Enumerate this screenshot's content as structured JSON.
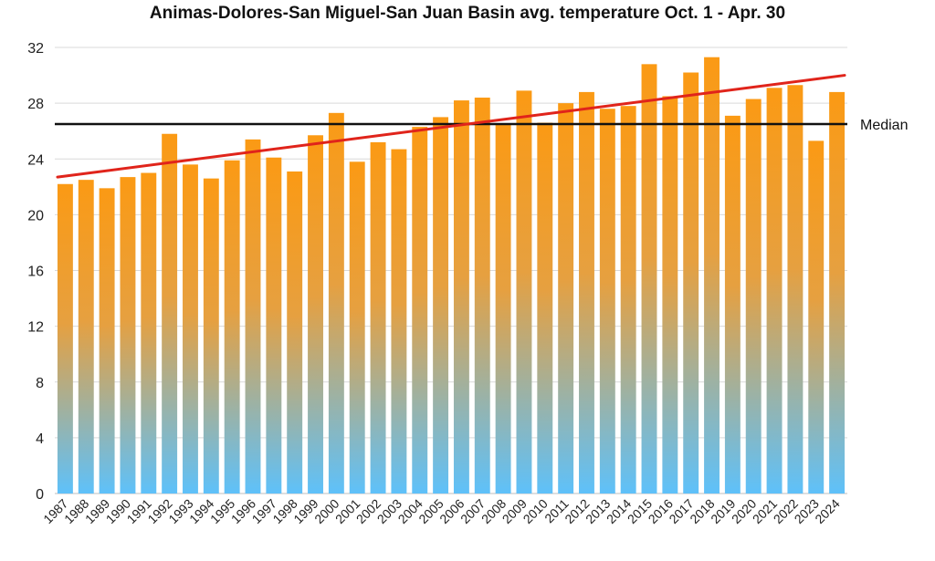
{
  "chart_data": {
    "type": "bar",
    "title": "Animas-Dolores-San Miguel-San Juan Basin avg. temperature Oct. 1 - Apr. 30",
    "xlabel": "",
    "ylabel": "",
    "ylim": [
      0,
      32
    ],
    "yticks": [
      "0",
      "4",
      "8",
      "12",
      "16",
      "20",
      "24",
      "28",
      "32"
    ],
    "grid": true,
    "legend": "none",
    "categories": [
      "1987",
      "1988",
      "1989",
      "1990",
      "1991",
      "1992",
      "1993",
      "1994",
      "1995",
      "1996",
      "1997",
      "1998",
      "1999",
      "2000",
      "2001",
      "2002",
      "2003",
      "2004",
      "2005",
      "2006",
      "2007",
      "2008",
      "2009",
      "2010",
      "2011",
      "2012",
      "2013",
      "2014",
      "2015",
      "2016",
      "2017",
      "2018",
      "2019",
      "2020",
      "2021",
      "2022",
      "2023",
      "2024"
    ],
    "values": [
      22.2,
      22.5,
      21.9,
      22.7,
      23.0,
      25.8,
      23.6,
      22.6,
      23.9,
      25.4,
      24.1,
      23.1,
      25.7,
      27.3,
      23.8,
      25.2,
      24.7,
      26.3,
      27.0,
      28.2,
      28.4,
      26.5,
      28.9,
      26.6,
      28.0,
      28.8,
      27.6,
      27.8,
      30.8,
      28.5,
      30.2,
      31.3,
      27.1,
      28.3,
      29.1,
      29.3,
      25.3,
      28.8
    ],
    "median": {
      "label": "Median",
      "value": 26.5
    },
    "trend": {
      "start": 22.7,
      "end": 30.0
    },
    "colors": {
      "bar_top": "#fb9a14",
      "bar_bottom": "#5ec1fa",
      "trend": "#e0241b",
      "median": "#111111",
      "grid": "#d9d9d9"
    }
  }
}
